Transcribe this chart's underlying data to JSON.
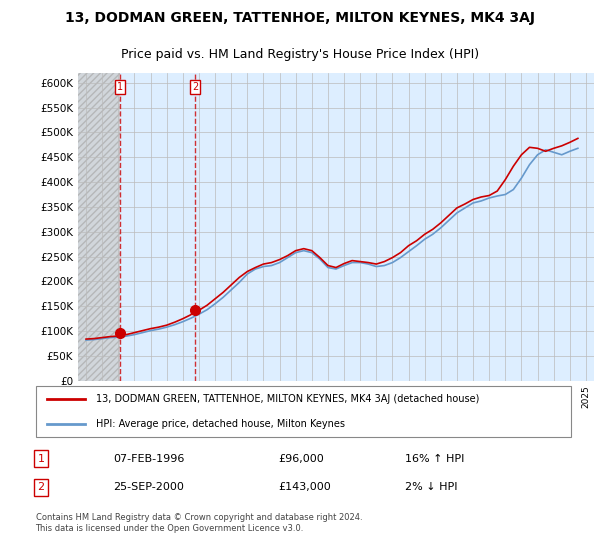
{
  "title": "13, DODMAN GREEN, TATTENHOE, MILTON KEYNES, MK4 3AJ",
  "subtitle": "Price paid vs. HM Land Registry's House Price Index (HPI)",
  "legend_line1": "13, DODMAN GREEN, TATTENHOE, MILTON KEYNES, MK4 3AJ (detached house)",
  "legend_line2": "HPI: Average price, detached house, Milton Keynes",
  "transaction1_label": "1",
  "transaction1_date": "07-FEB-1996",
  "transaction1_price": "£96,000",
  "transaction1_hpi": "16% ↑ HPI",
  "transaction1_year": 1996.1,
  "transaction1_value": 96000,
  "transaction2_label": "2",
  "transaction2_date": "25-SEP-2000",
  "transaction2_price": "£143,000",
  "transaction2_hpi": "2% ↓ HPI",
  "transaction2_year": 2000.75,
  "transaction2_value": 143000,
  "ylabel": "",
  "ylim_min": 0,
  "ylim_max": 620000,
  "yticks": [
    0,
    50000,
    100000,
    150000,
    200000,
    250000,
    300000,
    350000,
    400000,
    450000,
    500000,
    550000,
    600000
  ],
  "ytick_labels": [
    "£0",
    "£50K",
    "£100K",
    "£150K",
    "£200K",
    "£250K",
    "£300K",
    "£350K",
    "£400K",
    "£450K",
    "£500K",
    "£550K",
    "£600K"
  ],
  "xlim_min": 1993.5,
  "xlim_max": 2025.5,
  "background_color": "#ffffff",
  "plot_bg_color": "#ddeeff",
  "hatched_bg_color": "#cccccc",
  "grid_color": "#bbbbbb",
  "red_line_color": "#cc0000",
  "blue_line_color": "#6699cc",
  "footnote": "Contains HM Land Registry data © Crown copyright and database right 2024.\nThis data is licensed under the Open Government Licence v3.0.",
  "hpi_data_years": [
    1994,
    1994.5,
    1995,
    1995.5,
    1996,
    1996.5,
    1997,
    1997.5,
    1998,
    1998.5,
    1999,
    1999.5,
    2000,
    2000.5,
    2001,
    2001.5,
    2002,
    2002.5,
    2003,
    2003.5,
    2004,
    2004.5,
    2005,
    2005.5,
    2006,
    2006.5,
    2007,
    2007.5,
    2008,
    2008.5,
    2009,
    2009.5,
    2010,
    2010.5,
    2011,
    2011.5,
    2012,
    2012.5,
    2013,
    2013.5,
    2014,
    2014.5,
    2015,
    2015.5,
    2016,
    2016.5,
    2017,
    2017.5,
    2018,
    2018.5,
    2019,
    2019.5,
    2020,
    2020.5,
    2021,
    2021.5,
    2022,
    2022.5,
    2023,
    2023.5,
    2024,
    2024.5
  ],
  "hpi_values": [
    82000,
    83000,
    85000,
    87000,
    88000,
    90000,
    93000,
    97000,
    101000,
    104000,
    108000,
    113000,
    119000,
    126000,
    134000,
    143000,
    155000,
    168000,
    183000,
    198000,
    215000,
    225000,
    230000,
    232000,
    238000,
    248000,
    258000,
    262000,
    258000,
    245000,
    228000,
    225000,
    232000,
    238000,
    238000,
    235000,
    230000,
    232000,
    238000,
    248000,
    260000,
    272000,
    285000,
    295000,
    308000,
    323000,
    338000,
    348000,
    358000,
    362000,
    368000,
    372000,
    375000,
    385000,
    408000,
    435000,
    455000,
    465000,
    460000,
    455000,
    462000,
    468000
  ],
  "price_data_years": [
    1994,
    1994.5,
    1995,
    1995.5,
    1996,
    1996.1,
    1996.5,
    1997,
    1997.5,
    1998,
    1998.5,
    1999,
    1999.5,
    2000,
    2000.5,
    2000.75,
    2001,
    2001.5,
    2002,
    2002.5,
    2003,
    2003.5,
    2004,
    2004.5,
    2005,
    2005.5,
    2006,
    2006.5,
    2007,
    2007.5,
    2008,
    2008.5,
    2009,
    2009.5,
    2010,
    2010.5,
    2011,
    2011.5,
    2012,
    2012.5,
    2013,
    2013.5,
    2014,
    2014.5,
    2015,
    2015.5,
    2016,
    2016.5,
    2017,
    2017.5,
    2018,
    2018.5,
    2019,
    2019.5,
    2020,
    2020.5,
    2021,
    2021.5,
    2022,
    2022.5,
    2023,
    2023.5,
    2024,
    2024.5
  ],
  "price_values": [
    84000,
    85000,
    87000,
    89000,
    90000,
    96000,
    93000,
    97000,
    101000,
    105000,
    108000,
    112000,
    118000,
    125000,
    133000,
    143000,
    142000,
    152000,
    165000,
    178000,
    193000,
    208000,
    220000,
    228000,
    235000,
    238000,
    244000,
    252000,
    262000,
    266000,
    262000,
    248000,
    232000,
    228000,
    236000,
    242000,
    240000,
    238000,
    235000,
    240000,
    248000,
    258000,
    272000,
    282000,
    295000,
    305000,
    318000,
    333000,
    348000,
    356000,
    365000,
    370000,
    373000,
    382000,
    405000,
    432000,
    455000,
    470000,
    468000,
    462000,
    468000,
    473000,
    480000,
    488000
  ]
}
